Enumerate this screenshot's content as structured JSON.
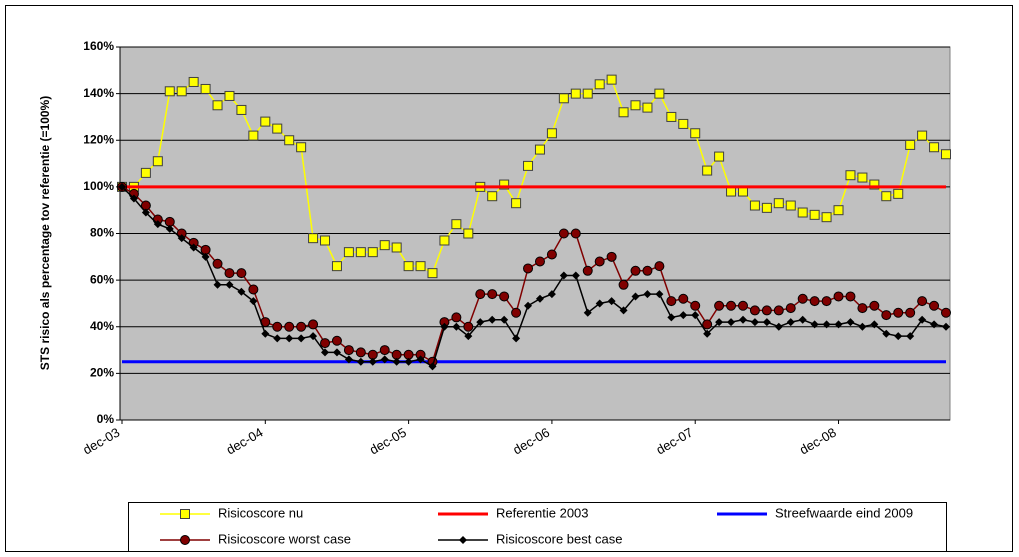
{
  "chart_data": {
    "type": "line",
    "y_label": "STS risico als percentage tov referentie (=100%)",
    "categories": [
      "dec-03",
      null,
      null,
      null,
      null,
      null,
      null,
      null,
      null,
      null,
      null,
      null,
      "dec-04",
      null,
      null,
      null,
      null,
      null,
      null,
      null,
      null,
      null,
      null,
      null,
      "dec-05",
      null,
      null,
      null,
      null,
      null,
      null,
      null,
      null,
      null,
      null,
      null,
      "dec-06",
      null,
      null,
      null,
      null,
      null,
      null,
      null,
      null,
      null,
      null,
      null,
      "dec-07",
      null,
      null,
      null,
      null,
      null,
      null,
      null,
      null,
      null,
      null,
      null,
      "dec-08",
      null,
      null,
      null,
      null,
      null,
      null,
      null,
      null,
      null
    ],
    "series": [
      {
        "name": "Risicoscore nu",
        "color": "#ffff00",
        "marker": "square",
        "values": [
          100,
          100,
          106,
          111,
          141,
          141,
          145,
          142,
          135,
          139,
          133,
          122,
          128,
          125,
          120,
          117,
          78,
          77,
          66,
          72,
          72,
          72,
          75,
          74,
          66,
          66,
          63,
          77,
          84,
          80,
          100,
          96,
          101,
          93,
          109,
          116,
          123,
          138,
          140,
          140,
          144,
          146,
          132,
          135,
          134,
          140,
          130,
          127,
          123,
          107,
          113,
          98,
          98,
          92,
          91,
          93,
          92,
          89,
          88,
          87,
          90,
          105,
          104,
          101,
          96,
          97,
          118,
          122,
          117,
          114
        ]
      },
      {
        "name": "Referentie 2003",
        "color": "#ff0000",
        "marker": "none",
        "values": [
          100,
          100,
          100,
          100,
          100,
          100,
          100,
          100,
          100,
          100,
          100,
          100,
          100,
          100,
          100,
          100,
          100,
          100,
          100,
          100,
          100,
          100,
          100,
          100,
          100,
          100,
          100,
          100,
          100,
          100,
          100,
          100,
          100,
          100,
          100,
          100,
          100,
          100,
          100,
          100,
          100,
          100,
          100,
          100,
          100,
          100,
          100,
          100,
          100,
          100,
          100,
          100,
          100,
          100,
          100,
          100,
          100,
          100,
          100,
          100,
          100,
          100,
          100,
          100,
          100,
          100,
          100,
          100,
          100,
          100
        ]
      },
      {
        "name": "Streefwaarde eind 2009",
        "color": "#0000ff",
        "marker": "none",
        "values": [
          25,
          25,
          25,
          25,
          25,
          25,
          25,
          25,
          25,
          25,
          25,
          25,
          25,
          25,
          25,
          25,
          25,
          25,
          25,
          25,
          25,
          25,
          25,
          25,
          25,
          25,
          25,
          25,
          25,
          25,
          25,
          25,
          25,
          25,
          25,
          25,
          25,
          25,
          25,
          25,
          25,
          25,
          25,
          25,
          25,
          25,
          25,
          25,
          25,
          25,
          25,
          25,
          25,
          25,
          25,
          25,
          25,
          25,
          25,
          25,
          25,
          25,
          25,
          25,
          25,
          25,
          25,
          25,
          25,
          25
        ]
      },
      {
        "name": "Risicoscore worst case",
        "color": "#800000",
        "marker": "circle",
        "values": [
          100,
          97,
          92,
          86,
          85,
          80,
          76,
          73,
          67,
          63,
          63,
          56,
          42,
          40,
          40,
          40,
          41,
          33,
          34,
          30,
          29,
          28,
          30,
          28,
          28,
          28,
          25,
          42,
          44,
          40,
          54,
          54,
          53,
          46,
          65,
          68,
          71,
          80,
          80,
          64,
          68,
          70,
          58,
          64,
          64,
          66,
          51,
          52,
          49,
          41,
          49,
          49,
          49,
          47,
          47,
          47,
          48,
          52,
          51,
          51,
          53,
          53,
          48,
          49,
          45,
          46,
          46,
          51,
          49,
          46
        ]
      },
      {
        "name": "Risicoscore best case",
        "color": "#000000",
        "marker": "diamond",
        "values": [
          100,
          95,
          89,
          84,
          82,
          78,
          74,
          70,
          58,
          58,
          55,
          51,
          37,
          35,
          35,
          35,
          36,
          29,
          29,
          26,
          25,
          25,
          26,
          25,
          25,
          26,
          23,
          40,
          40,
          36,
          42,
          43,
          43,
          35,
          49,
          52,
          54,
          62,
          62,
          46,
          50,
          51,
          47,
          53,
          54,
          54,
          44,
          45,
          45,
          37,
          42,
          42,
          43,
          42,
          42,
          40,
          42,
          43,
          41,
          41,
          41,
          42,
          40,
          41,
          37,
          36,
          36,
          43,
          41,
          40
        ]
      }
    ],
    "ylim": [
      0,
      160
    ],
    "yticks": [
      {
        "value": 0,
        "label": "0%"
      },
      {
        "value": 20,
        "label": "20%"
      },
      {
        "value": 40,
        "label": "40%"
      },
      {
        "value": 60,
        "label": "60%"
      },
      {
        "value": 80,
        "label": "80%"
      },
      {
        "value": 100,
        "label": "100%"
      },
      {
        "value": 120,
        "label": "120%"
      },
      {
        "value": 140,
        "label": "140%"
      },
      {
        "value": 160,
        "label": "160%"
      }
    ],
    "grid": true,
    "legend": "bottom"
  }
}
